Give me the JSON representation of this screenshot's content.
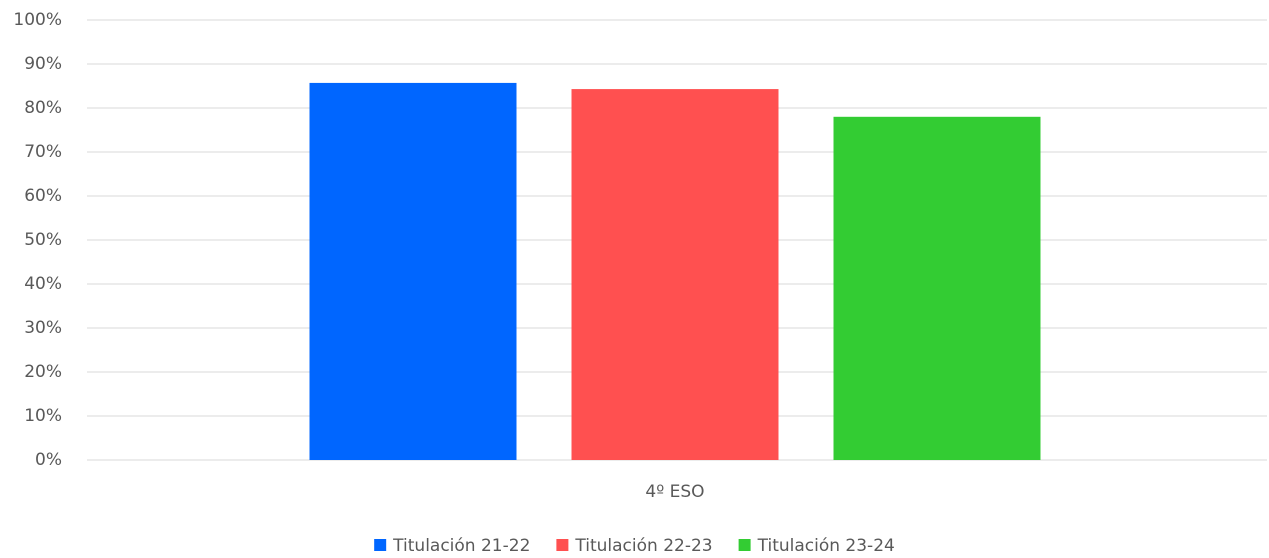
{
  "chart_data": {
    "type": "bar",
    "categories": [
      "4º ESO"
    ],
    "series": [
      {
        "name": "Titulación 21-22",
        "color": "#0066ff",
        "values": [
          85.7
        ]
      },
      {
        "name": "Titulación 22-23",
        "color": "#ff5050",
        "values": [
          84.3
        ]
      },
      {
        "name": "Titulación 23-24",
        "color": "#33cc33",
        "values": [
          78
        ]
      }
    ],
    "ylim": [
      0,
      100
    ],
    "yticks": [
      {
        "value": 0,
        "label": "0%"
      },
      {
        "value": 10,
        "label": "10%"
      },
      {
        "value": 20,
        "label": "20%"
      },
      {
        "value": 30,
        "label": "30%"
      },
      {
        "value": 40,
        "label": "40%"
      },
      {
        "value": 50,
        "label": "50%"
      },
      {
        "value": 60,
        "label": "60%"
      },
      {
        "value": 70,
        "label": "70%"
      },
      {
        "value": 80,
        "label": "80%"
      },
      {
        "value": 90,
        "label": "90%"
      },
      {
        "value": 100,
        "label": "100%"
      }
    ],
    "grid": true,
    "legend": "bottom"
  }
}
